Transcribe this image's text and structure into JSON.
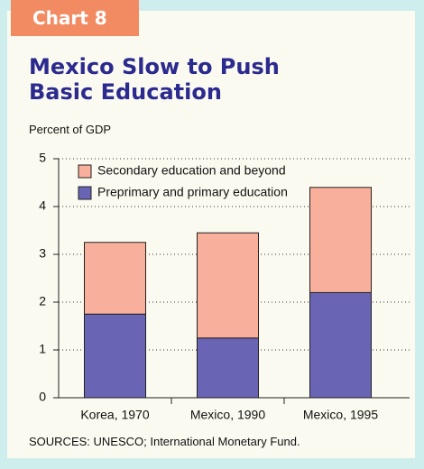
{
  "chart_data": {
    "type": "stacked-bar",
    "tag": "Chart 8",
    "title": "Mexico Slow to Push Basic Education",
    "ylabel": "Percent of GDP",
    "source": "SOURCES: UNESCO; International Monetary Fund.",
    "categories": [
      "Korea, 1970",
      "Mexico, 1990",
      "Mexico, 1995"
    ],
    "series": [
      {
        "name": "Preprimary and primary education",
        "color": "#6a64b4",
        "values": [
          1.75,
          1.25,
          2.2
        ]
      },
      {
        "name": "Secondary education and beyond",
        "color": "#f8b09c",
        "values": [
          1.5,
          2.2,
          2.2
        ]
      }
    ],
    "ylim": [
      0,
      5
    ],
    "yticks": [
      0,
      1,
      2,
      3,
      4,
      5
    ],
    "grid": true
  }
}
